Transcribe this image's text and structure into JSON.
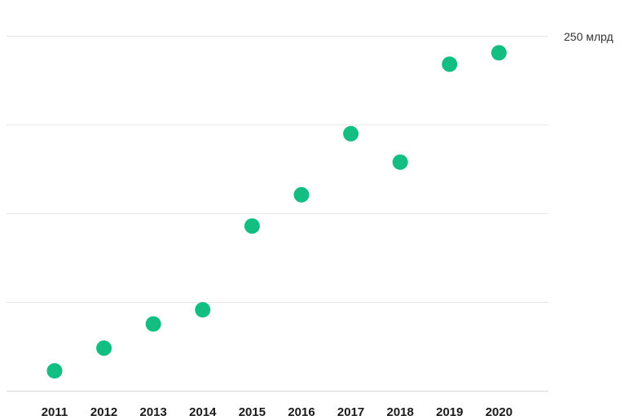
{
  "chart_data": {
    "type": "scatter",
    "title": "",
    "xlabel": "",
    "ylabel": "",
    "x": [
      "2011",
      "2012",
      "2013",
      "2014",
      "2015",
      "2016",
      "2017",
      "2018",
      "2019",
      "2020"
    ],
    "values": [
      14,
      30,
      47,
      57,
      116,
      138,
      181,
      161,
      230,
      238
    ],
    "ylim": [
      0,
      250
    ],
    "y_tick_label": "250 млрд",
    "grid": true,
    "marker_color": "#12be82"
  }
}
